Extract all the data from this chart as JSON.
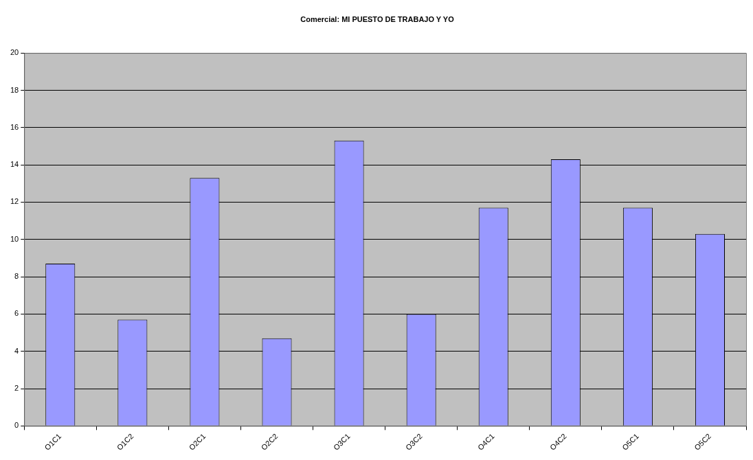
{
  "chart_data": {
    "type": "bar",
    "title": "Comercial: MI PUESTO DE TRABAJO Y YO",
    "categories": [
      "O1C1",
      "O1C2",
      "O2C1",
      "O2C2",
      "O3C1",
      "O3C2",
      "O4C1",
      "O4C2",
      "O5C1",
      "O5C2"
    ],
    "values": [
      8.7,
      5.7,
      13.3,
      4.7,
      15.3,
      6,
      11.7,
      14.3,
      11.7,
      10.3
    ],
    "color": "#9999ff",
    "ylim": [
      0,
      20
    ],
    "yticks": [
      0,
      2,
      4,
      6,
      8,
      10,
      12,
      14,
      16,
      18,
      20
    ],
    "grid": "y",
    "legend": false
  }
}
